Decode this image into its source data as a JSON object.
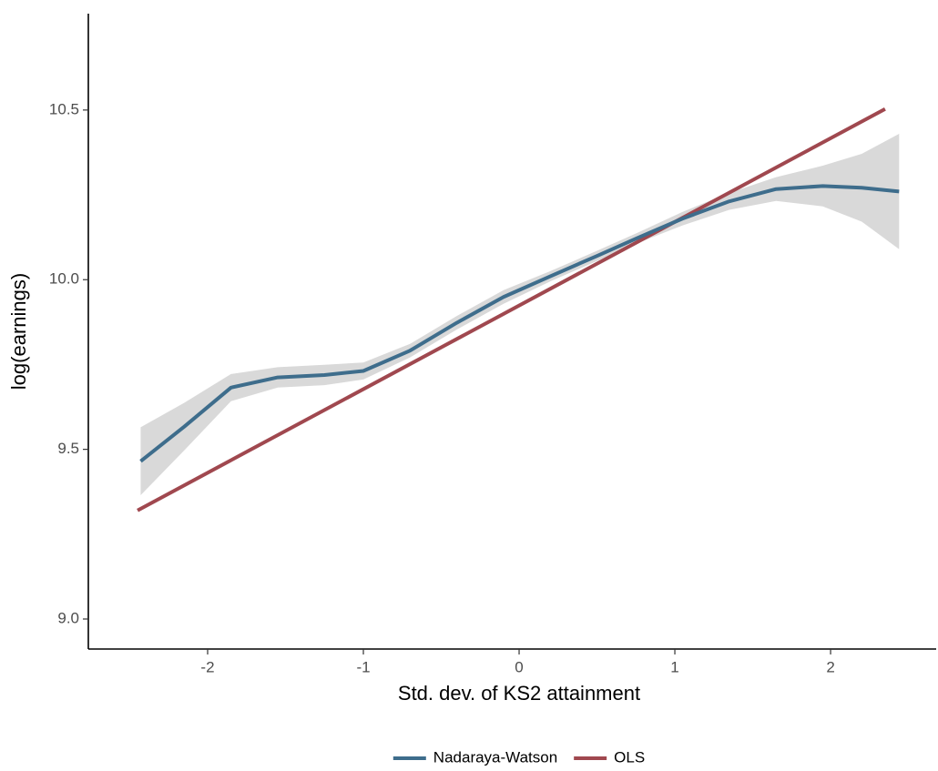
{
  "chart_data": {
    "type": "line",
    "x_label": "Std. dev. of KS2 attainment",
    "y_label": "log(earnings)",
    "xlim": [
      -2.766,
      2.678
    ],
    "ylim": [
      8.9115,
      10.784
    ],
    "xticks": [
      -2,
      -1,
      0,
      1,
      2
    ],
    "yticks": [
      {
        "value": 9,
        "label": "9.0"
      },
      9.5,
      {
        "value": 10,
        "label": "10.0"
      },
      10.5
    ],
    "grid": false,
    "legend": "bottom",
    "series": [
      {
        "name": "Nadaraya-Watson",
        "color": "#3e6d8c",
        "band_color": "#d9d9d9",
        "x": [
          -2.43,
          -2.15,
          -1.85,
          -1.55,
          -1.25,
          -1,
          -0.7,
          -0.4,
          -0.1,
          0.2,
          0.5,
          0.75,
          1.05,
          1.35,
          1.65,
          1.95,
          2.2,
          2.44
        ],
        "values": [
          9.465,
          9.567,
          9.682,
          9.712,
          9.719,
          9.731,
          9.791,
          9.873,
          9.949,
          10.01,
          10.07,
          10.121,
          10.18,
          10.231,
          10.267,
          10.276,
          10.271,
          10.26
        ],
        "lower": [
          9.365,
          9.497,
          9.642,
          9.682,
          9.689,
          9.706,
          9.771,
          9.853,
          9.929,
          9.995,
          10.055,
          10.106,
          10.16,
          10.206,
          10.232,
          10.216,
          10.171,
          10.09
        ],
        "upper": [
          9.565,
          9.637,
          9.722,
          9.742,
          9.749,
          9.756,
          9.811,
          9.893,
          9.969,
          10.025,
          10.085,
          10.136,
          10.2,
          10.256,
          10.302,
          10.336,
          10.371,
          10.43
        ]
      },
      {
        "name": "OLS",
        "color": "#a0484f",
        "x": [
          -2.45,
          2.35
        ],
        "values": [
          9.32,
          10.503
        ]
      }
    ]
  }
}
